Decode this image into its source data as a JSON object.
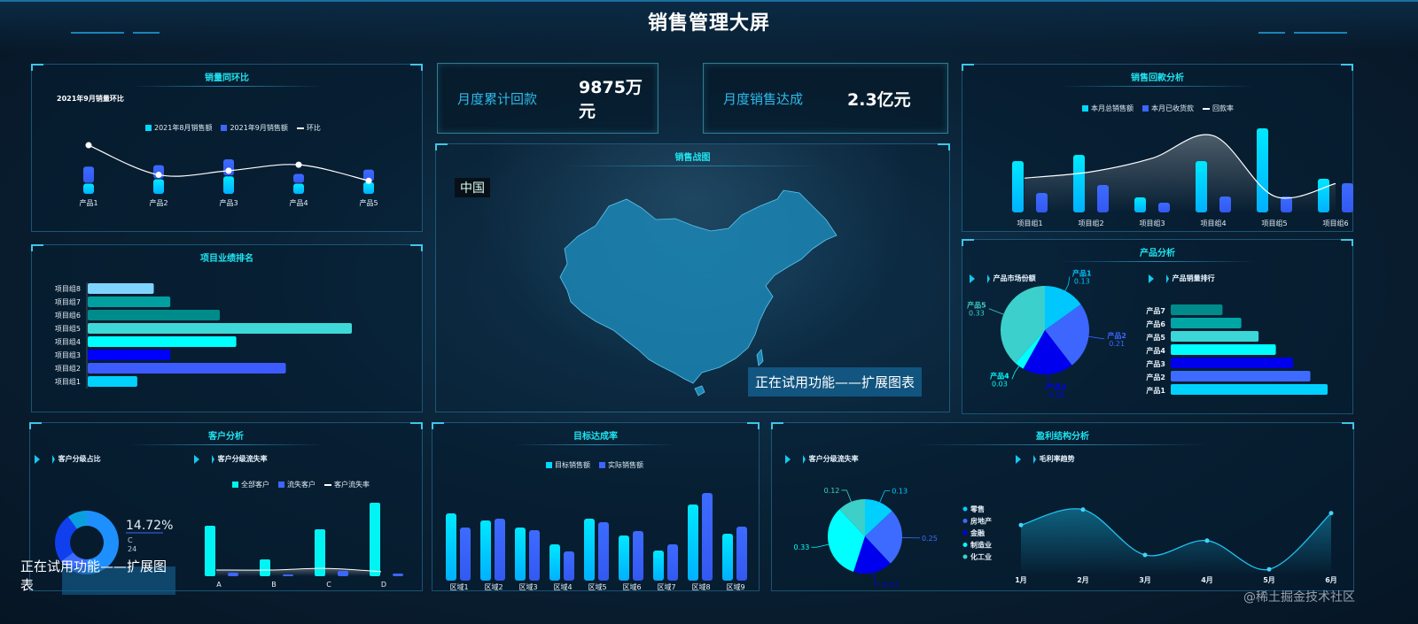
{
  "header": {
    "title": "销售管理大屏"
  },
  "kpis": [
    {
      "label": "月度累计回款",
      "value": "9875万元"
    },
    {
      "label": "月度销售达成",
      "value": "2.3亿元"
    }
  ],
  "map_panel": {
    "title": "销售战图",
    "region_tag": "中国",
    "trial_notice": "正在试用功能——扩展图表"
  },
  "customer_notice": "正在试用功能——扩展图表",
  "watermark": "@稀土掘金技术社区",
  "colors": {
    "cyan": "#00d8ff",
    "blue": "#3d66ff",
    "deep_blue": "#0000ee",
    "aqua": "#00ffff",
    "teal": "#3cd2cc",
    "title": "#1fe4f0"
  },
  "chart_data": [
    {
      "panel_title": "销量同环比",
      "title": "2021年9月销量环比",
      "type": "bar+line",
      "categories": [
        "产品1",
        "产品2",
        "产品3",
        "产品4",
        "产品5"
      ],
      "series": [
        {
          "name": "2021年8月销售额",
          "values": [
            3.5,
            5,
            6,
            3.5,
            4
          ]
        },
        {
          "name": "2021年9月销售额",
          "values": [
            5.5,
            4.5,
            5.5,
            3,
            4
          ]
        },
        {
          "name": "环比",
          "type": "line",
          "values": [
            85,
            35,
            42,
            52,
            25
          ]
        }
      ]
    },
    {
      "panel_title": "项目业绩排名",
      "type": "bar",
      "orientation": "horizontal",
      "categories": [
        "项目组1",
        "项目组2",
        "项目组3",
        "项目组4",
        "项目组5",
        "项目组6",
        "项目组7",
        "项目组8"
      ],
      "values": [
        15,
        60,
        25,
        45,
        80,
        40,
        25,
        20
      ],
      "colors": [
        "#00d2ff",
        "#3d5cff",
        "#0000ff",
        "#00ffff",
        "#3fd8d8",
        "#008b8b",
        "#00a0a0",
        "#7fd4ff"
      ]
    },
    {
      "panel_title": "销售回款分析",
      "type": "bar+line",
      "categories": [
        "项目组1",
        "项目组2",
        "项目组3",
        "项目组4",
        "项目组5",
        "项目组6"
      ],
      "series": [
        {
          "name": "本月总销售额",
          "values": [
            58,
            65,
            17,
            58,
            95,
            38
          ]
        },
        {
          "name": "本月已收货款",
          "values": [
            22,
            31,
            11,
            18,
            18,
            33
          ]
        },
        {
          "name": "回款率",
          "type": "line",
          "values": [
            0.38,
            0.45,
            0.6,
            0.85,
            0.18,
            0.32
          ]
        }
      ]
    },
    {
      "panel_title": "产品分析",
      "subtitle": "产品市场份额",
      "type": "pie",
      "categories": [
        "产品1",
        "产品2",
        "产品3",
        "产品4",
        "产品5"
      ],
      "labels": [
        "0.13",
        "0.21",
        "0.16",
        "0.03",
        "0.33"
      ],
      "values": [
        0.13,
        0.21,
        0.16,
        0.03,
        0.33
      ],
      "colors": [
        "#00c8ff",
        "#3d66ff",
        "#0000ee",
        "#00ffff",
        "#3cd0cc"
      ]
    },
    {
      "subtitle": "产品销量排行",
      "type": "bar",
      "orientation": "horizontal",
      "categories": [
        "产品1",
        "产品2",
        "产品3",
        "产品4",
        "产品5",
        "产品6",
        "产品7"
      ],
      "values": [
        100,
        89,
        78,
        67,
        56,
        45,
        33
      ],
      "colors": [
        "#00d2ff",
        "#3d6bff",
        "#0000ee",
        "#00ffff",
        "#3cd6d6",
        "#00a5a5",
        "#008b8b"
      ]
    },
    {
      "panel_title": "客户分析",
      "subtitle": "客户分级占比",
      "type": "pie",
      "donut": true,
      "values": [
        0.5,
        0.15,
        0.25,
        0.1
      ],
      "colors": [
        "#1e8fff",
        "#3d6bff",
        "#1040ee",
        "#0aa0e0"
      ],
      "label": "14.72%",
      "label_category": "C",
      "label_value": "24"
    },
    {
      "subtitle": "客户分级流失率",
      "type": "bar+line",
      "categories": [
        "A",
        "B",
        "C",
        "D"
      ],
      "series": [
        {
          "name": "全部客户",
          "values": [
            57,
            19,
            53,
            83
          ]
        },
        {
          "name": "流失客户",
          "values": [
            4,
            1,
            6,
            3
          ]
        },
        {
          "name": "客户流失率",
          "type": "line",
          "values": [
            0.05,
            0.05,
            0.08,
            0.02
          ]
        }
      ]
    },
    {
      "panel_title": "目标达成率",
      "type": "bar",
      "categories": [
        "区域1",
        "区域2",
        "区域3",
        "区域4",
        "区域5",
        "区域6",
        "区域7",
        "区域8",
        "区域9"
      ],
      "series": [
        {
          "name": "目标销售额",
          "values": [
            76,
            68,
            60,
            41,
            70,
            51,
            34,
            86,
            53
          ]
        },
        {
          "name": "实际销售额",
          "values": [
            60,
            70,
            57,
            33,
            66,
            56,
            41,
            99,
            61
          ]
        }
      ]
    },
    {
      "panel_title": "盈利结构分析",
      "subtitle": "客户分级流失率",
      "type": "pie",
      "categories": [
        "零售",
        "房地产",
        "金融",
        "制造业",
        "化工业"
      ],
      "labels": [
        "0.13",
        "0.25",
        "0.17",
        "0.33",
        "0.12"
      ],
      "values": [
        0.13,
        0.25,
        0.17,
        0.33,
        0.12
      ],
      "colors": [
        "#00cfff",
        "#3d6bff",
        "#0000ee",
        "#00ffff",
        "#3cd0c8"
      ]
    },
    {
      "subtitle": "毛利率趋势",
      "type": "area",
      "categories": [
        "1月",
        "2月",
        "3月",
        "4月",
        "5月",
        "6月"
      ],
      "values": [
        45,
        58,
        20,
        32,
        8,
        55
      ]
    }
  ]
}
